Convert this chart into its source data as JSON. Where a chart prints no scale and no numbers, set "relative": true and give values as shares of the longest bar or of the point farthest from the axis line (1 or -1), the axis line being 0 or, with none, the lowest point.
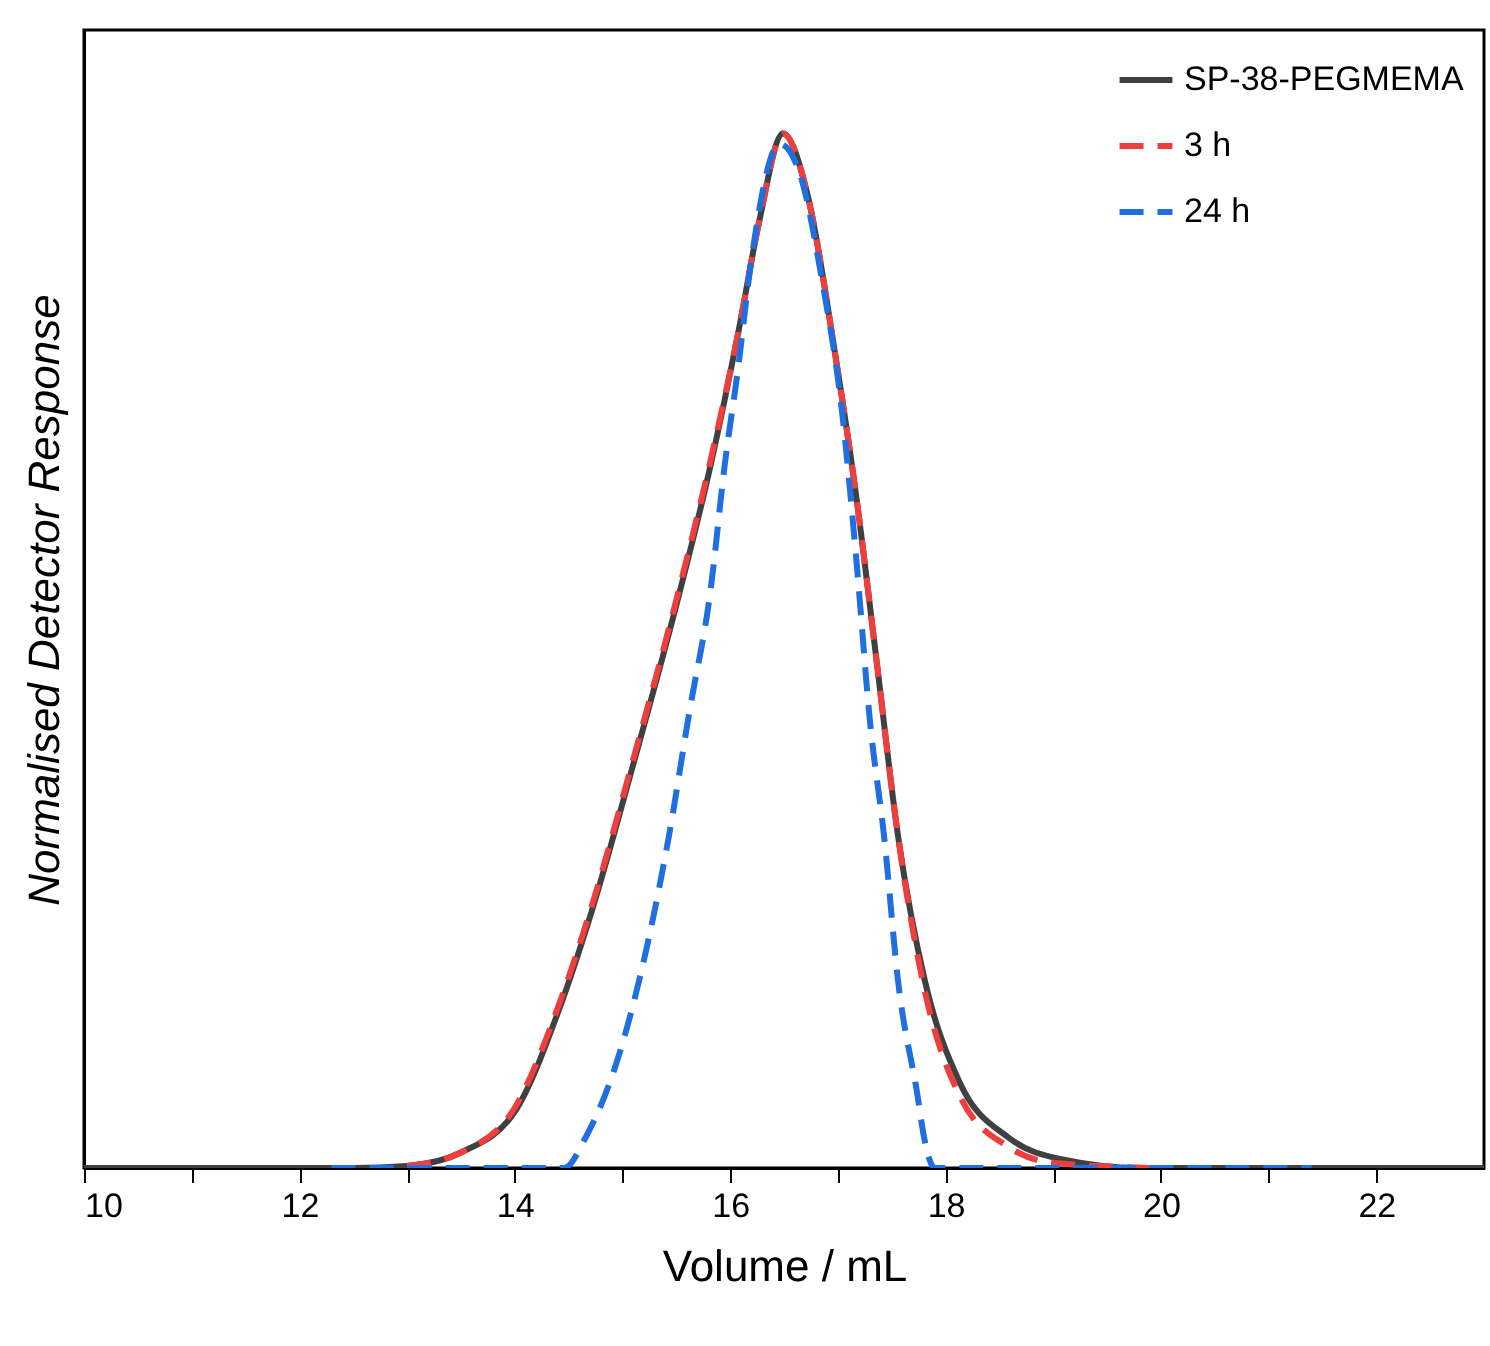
{
  "chart_data": {
    "type": "line",
    "relative": true,
    "xlabel": "Volume / mL",
    "ylabel": "Normalised Detector Response",
    "xlim": [
      10,
      23
    ],
    "xticks": [
      10,
      {
        "value": 11,
        "label": null
      },
      12,
      {
        "value": 13,
        "label": null
      },
      14,
      {
        "value": 15,
        "label": null
      },
      16,
      {
        "value": 17,
        "label": null
      },
      18,
      {
        "value": 19,
        "label": null
      },
      20,
      {
        "value": 21,
        "label": null
      },
      22
    ],
    "tick_labels": "x",
    "grid": false,
    "legend": "top right",
    "marker": "none",
    "series": [
      {
        "name": "SP-38-PEGMEMA",
        "color": "#404040",
        "line_style": "solid",
        "x": [
          10.0,
          12.5,
          13.0,
          13.5,
          14.01,
          14.4,
          14.72,
          15.1,
          15.49,
          15.82,
          16.08,
          16.27,
          16.49,
          16.72,
          16.97,
          17.17,
          17.36,
          17.56,
          17.81,
          18.13,
          18.59,
          19.1,
          19.8,
          23.0
        ],
        "values": [
          0,
          0,
          0.002,
          0.015,
          0.056,
          0.15,
          0.25,
          0.39,
          0.54,
          0.68,
          0.81,
          0.915,
          1.0,
          0.94,
          0.79,
          0.65,
          0.49,
          0.32,
          0.18,
          0.083,
          0.029,
          0.008,
          0,
          0
        ]
      },
      {
        "name": "3 h",
        "color": "#ef3e3e",
        "line_style": "dashed",
        "x": [
          13.0,
          13.5,
          14.01,
          14.4,
          14.72,
          15.1,
          15.49,
          15.82,
          16.08,
          16.27,
          16.49,
          16.72,
          16.97,
          17.17,
          17.36,
          17.56,
          17.81,
          18.13,
          18.59,
          19.0,
          19.9
        ],
        "values": [
          0.002,
          0.015,
          0.06,
          0.155,
          0.255,
          0.395,
          0.545,
          0.685,
          0.81,
          0.915,
          1.0,
          0.94,
          0.79,
          0.65,
          0.49,
          0.32,
          0.17,
          0.07,
          0.02,
          0.005,
          0
        ]
      },
      {
        "name": "24 h",
        "color": "#1f6fe0",
        "line_style": "dashed",
        "x": [
          12.3,
          14.46,
          14.66,
          14.97,
          15.24,
          15.43,
          15.62,
          15.82,
          15.95,
          16.07,
          16.2,
          16.46,
          16.65,
          16.85,
          17.04,
          17.17,
          17.3,
          17.43,
          17.56,
          17.74,
          17.8,
          17.9,
          21.4
        ],
        "values": [
          0,
          0,
          0.03,
          0.11,
          0.22,
          0.32,
          0.44,
          0.56,
          0.68,
          0.77,
          0.88,
          0.99,
          0.96,
          0.86,
          0.73,
          0.59,
          0.43,
          0.32,
          0.18,
          0.07,
          0.03,
          0,
          0
        ]
      }
    ]
  }
}
